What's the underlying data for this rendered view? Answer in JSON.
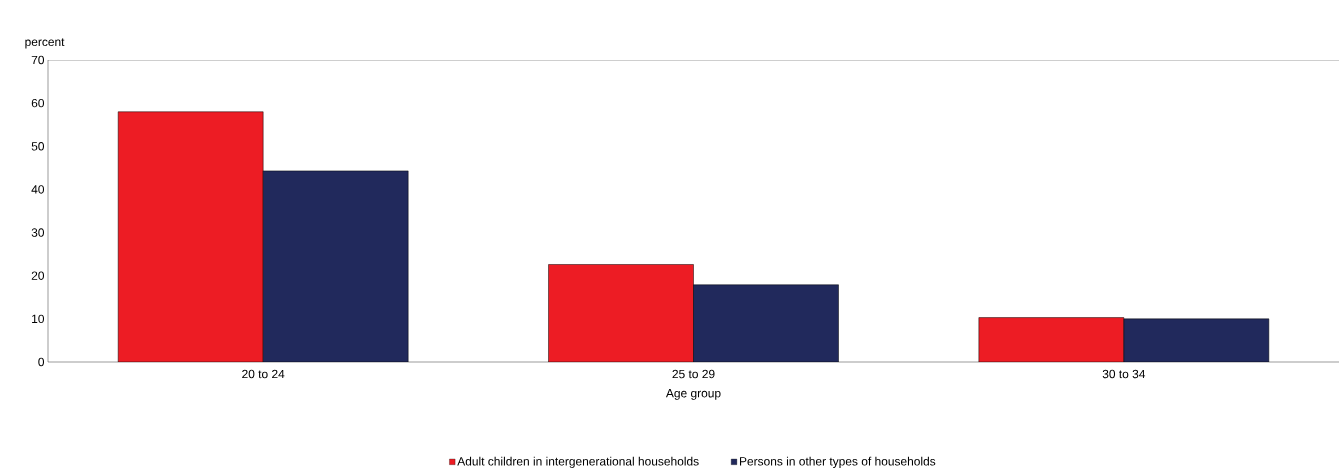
{
  "chart_data": {
    "type": "bar",
    "ylabel": "percent",
    "xlabel": "Age group",
    "categories": [
      "20 to 24",
      "25 to 29",
      "30 to 34"
    ],
    "series": [
      {
        "name": "Adult children in intergenerational households",
        "color": "#ed1c24",
        "values": [
          58,
          22.6,
          10.3
        ]
      },
      {
        "name": "Persons in other types of households",
        "color": "#21295c",
        "values": [
          44.3,
          17.9,
          10
        ]
      }
    ],
    "ylim": [
      0,
      70
    ],
    "yticks": [
      0,
      10,
      20,
      30,
      40,
      50,
      60,
      70
    ],
    "grid": false,
    "legend": "bottom"
  }
}
